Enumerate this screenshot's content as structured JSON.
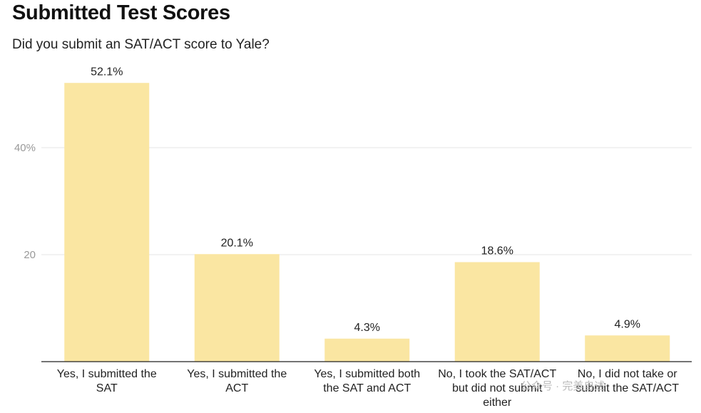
{
  "title": "Submitted Test Scores",
  "subtitle": "Did you submit an SAT/ACT score to Yale?",
  "colors": {
    "bar": "#fae6a2",
    "grid": "#e6e6e6",
    "axis": "#222222"
  },
  "chart_data": {
    "type": "bar",
    "categories": [
      "Yes, I submitted the SAT",
      "Yes, I submitted the ACT",
      "Yes, I submitted both the SAT and ACT",
      "No, I took the SAT/ACT but did not submit either",
      "No, I did not take or submit the SAT/ACT"
    ],
    "values": [
      52.1,
      20.1,
      4.3,
      18.6,
      4.9
    ],
    "data_labels": [
      "52.1%",
      "20.1%",
      "4.3%",
      "18.6%",
      "4.9%"
    ],
    "y_ticks": [
      {
        "value": 20,
        "label": "20"
      },
      {
        "value": 40,
        "label": "40%"
      }
    ],
    "ylim": [
      0,
      54
    ],
    "grid": true,
    "legend": "none"
  },
  "watermark": "公众号 · 完美自述"
}
